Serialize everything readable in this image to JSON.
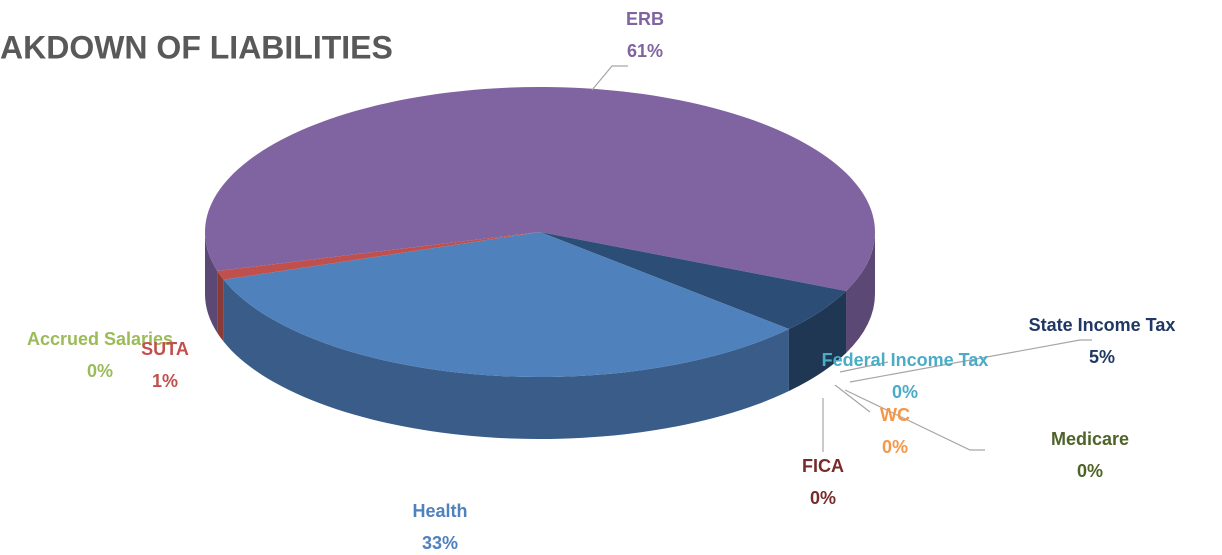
{
  "chart_data": {
    "type": "pie3d",
    "title": "AKDOWN OF LIABILITIES",
    "categories": [
      "ERB",
      "State Income Tax",
      "Federal Income Tax",
      "WC",
      "Medicare",
      "FICA",
      "Health",
      "Accrued Salaries",
      "SUTA"
    ],
    "values": [
      61,
      5,
      0,
      0,
      0,
      0,
      33,
      0,
      1
    ],
    "value_labels": [
      "61%",
      "5%",
      "0%",
      "0%",
      "0%",
      "0%",
      "33%",
      "0%",
      "1%"
    ],
    "colors": [
      "#8064a2",
      "#2c4d75",
      "#4bacc6",
      "#f79646",
      "#4f6228",
      "#772c2a",
      "#4f81bd",
      "#9bbb59",
      "#c0504d"
    ]
  }
}
